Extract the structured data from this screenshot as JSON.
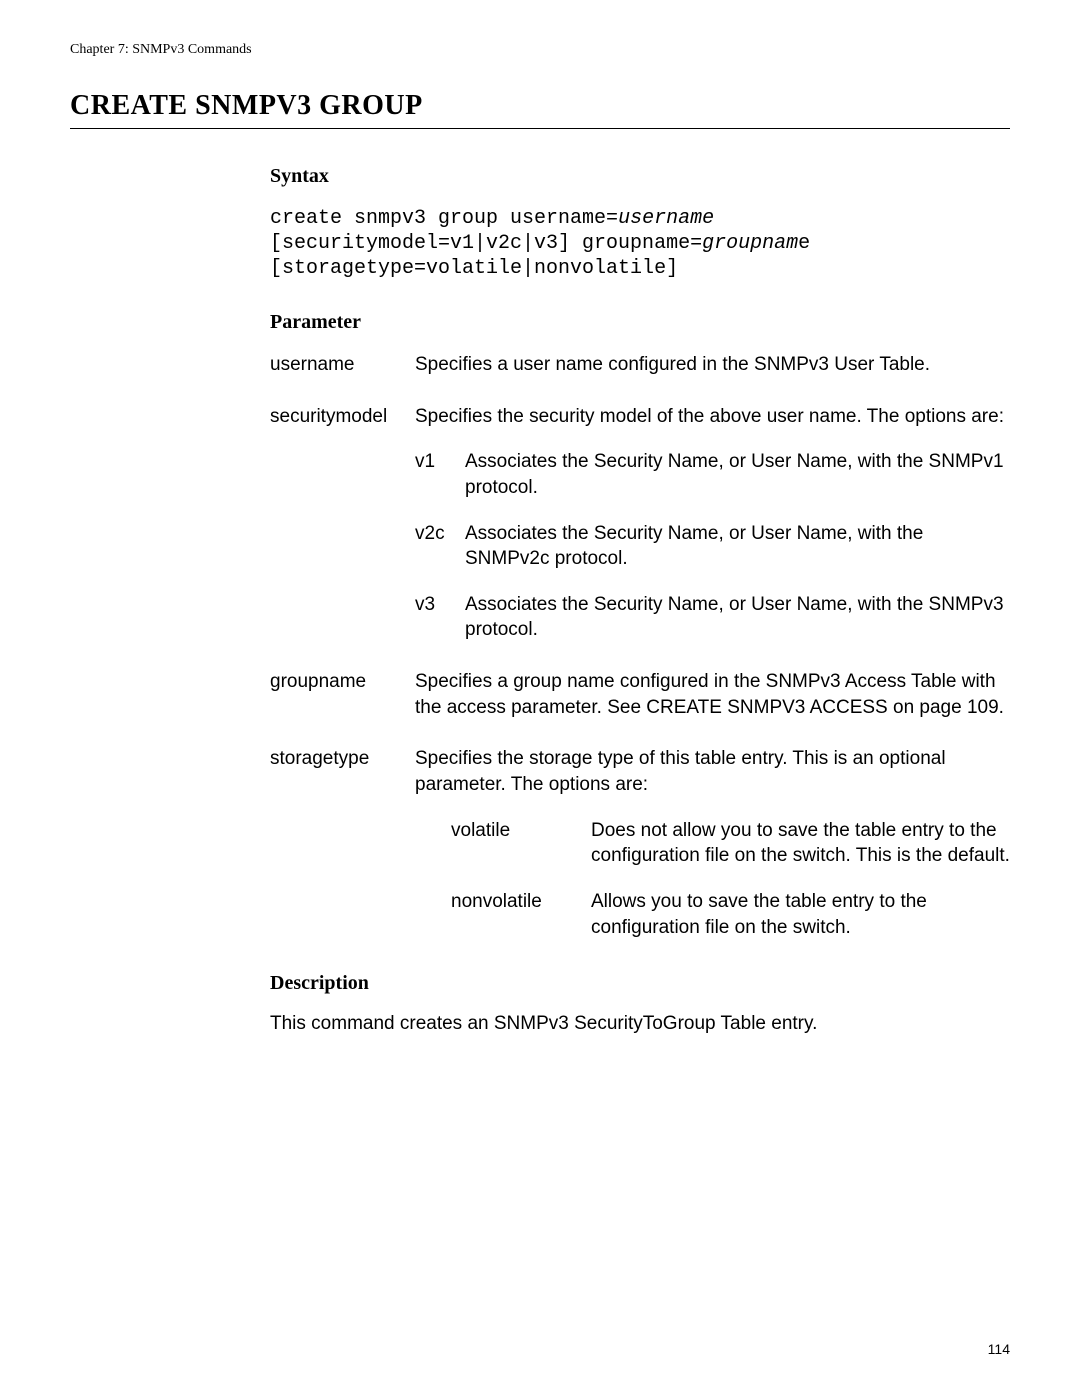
{
  "chapter_header": "Chapter 7: SNMPv3 Commands",
  "title": "CREATE SNMPV3 GROUP",
  "sections": {
    "syntax": {
      "heading": "Syntax",
      "line1_a": "create snmpv3 group username=",
      "line1_b": "username",
      "line2_a": "[securitymodel=v1|v2c|v3] groupname=",
      "line2_b": "groupnam",
      "line2_c": "e",
      "line3": "[storagetype=volatile|nonvolatile]"
    },
    "parameter": {
      "heading": "Parameter",
      "rows": {
        "username": {
          "name": "username",
          "desc": "Specifies a user name configured in the SNMPv3 User Table."
        },
        "securitymodel": {
          "name": "securitymodel",
          "desc": "Specifies the security model of the above user name. The options are:",
          "options": {
            "v1": {
              "key": "v1",
              "desc": "Associates the Security Name, or User Name, with the SNMPv1 protocol."
            },
            "v2c": {
              "key": "v2c",
              "desc": "Associates the Security Name, or User Name, with the SNMPv2c protocol."
            },
            "v3": {
              "key": "v3",
              "desc": "Associates the Security Name, or User Name, with the SNMPv3 protocol."
            }
          }
        },
        "groupname": {
          "name": "groupname",
          "desc": "Specifies a group name configured in the SNMPv3 Access Table with the access parameter. See CREATE SNMPV3 ACCESS on page 109."
        },
        "storagetype": {
          "name": "storagetype",
          "desc": "Specifies the storage type of this table entry. This is an optional parameter. The options are:",
          "options": {
            "volatile": {
              "key": "volatile",
              "desc": "Does not allow you to save the table entry to the configuration file on the switch. This is the default."
            },
            "nonvolatile": {
              "key": "nonvolatile",
              "desc": "Allows you to save the table entry to the configuration file on the switch."
            }
          }
        }
      }
    },
    "description": {
      "heading": "Description",
      "text": "This command creates an SNMPv3 SecurityToGroup Table entry."
    }
  },
  "page_number": "114"
}
